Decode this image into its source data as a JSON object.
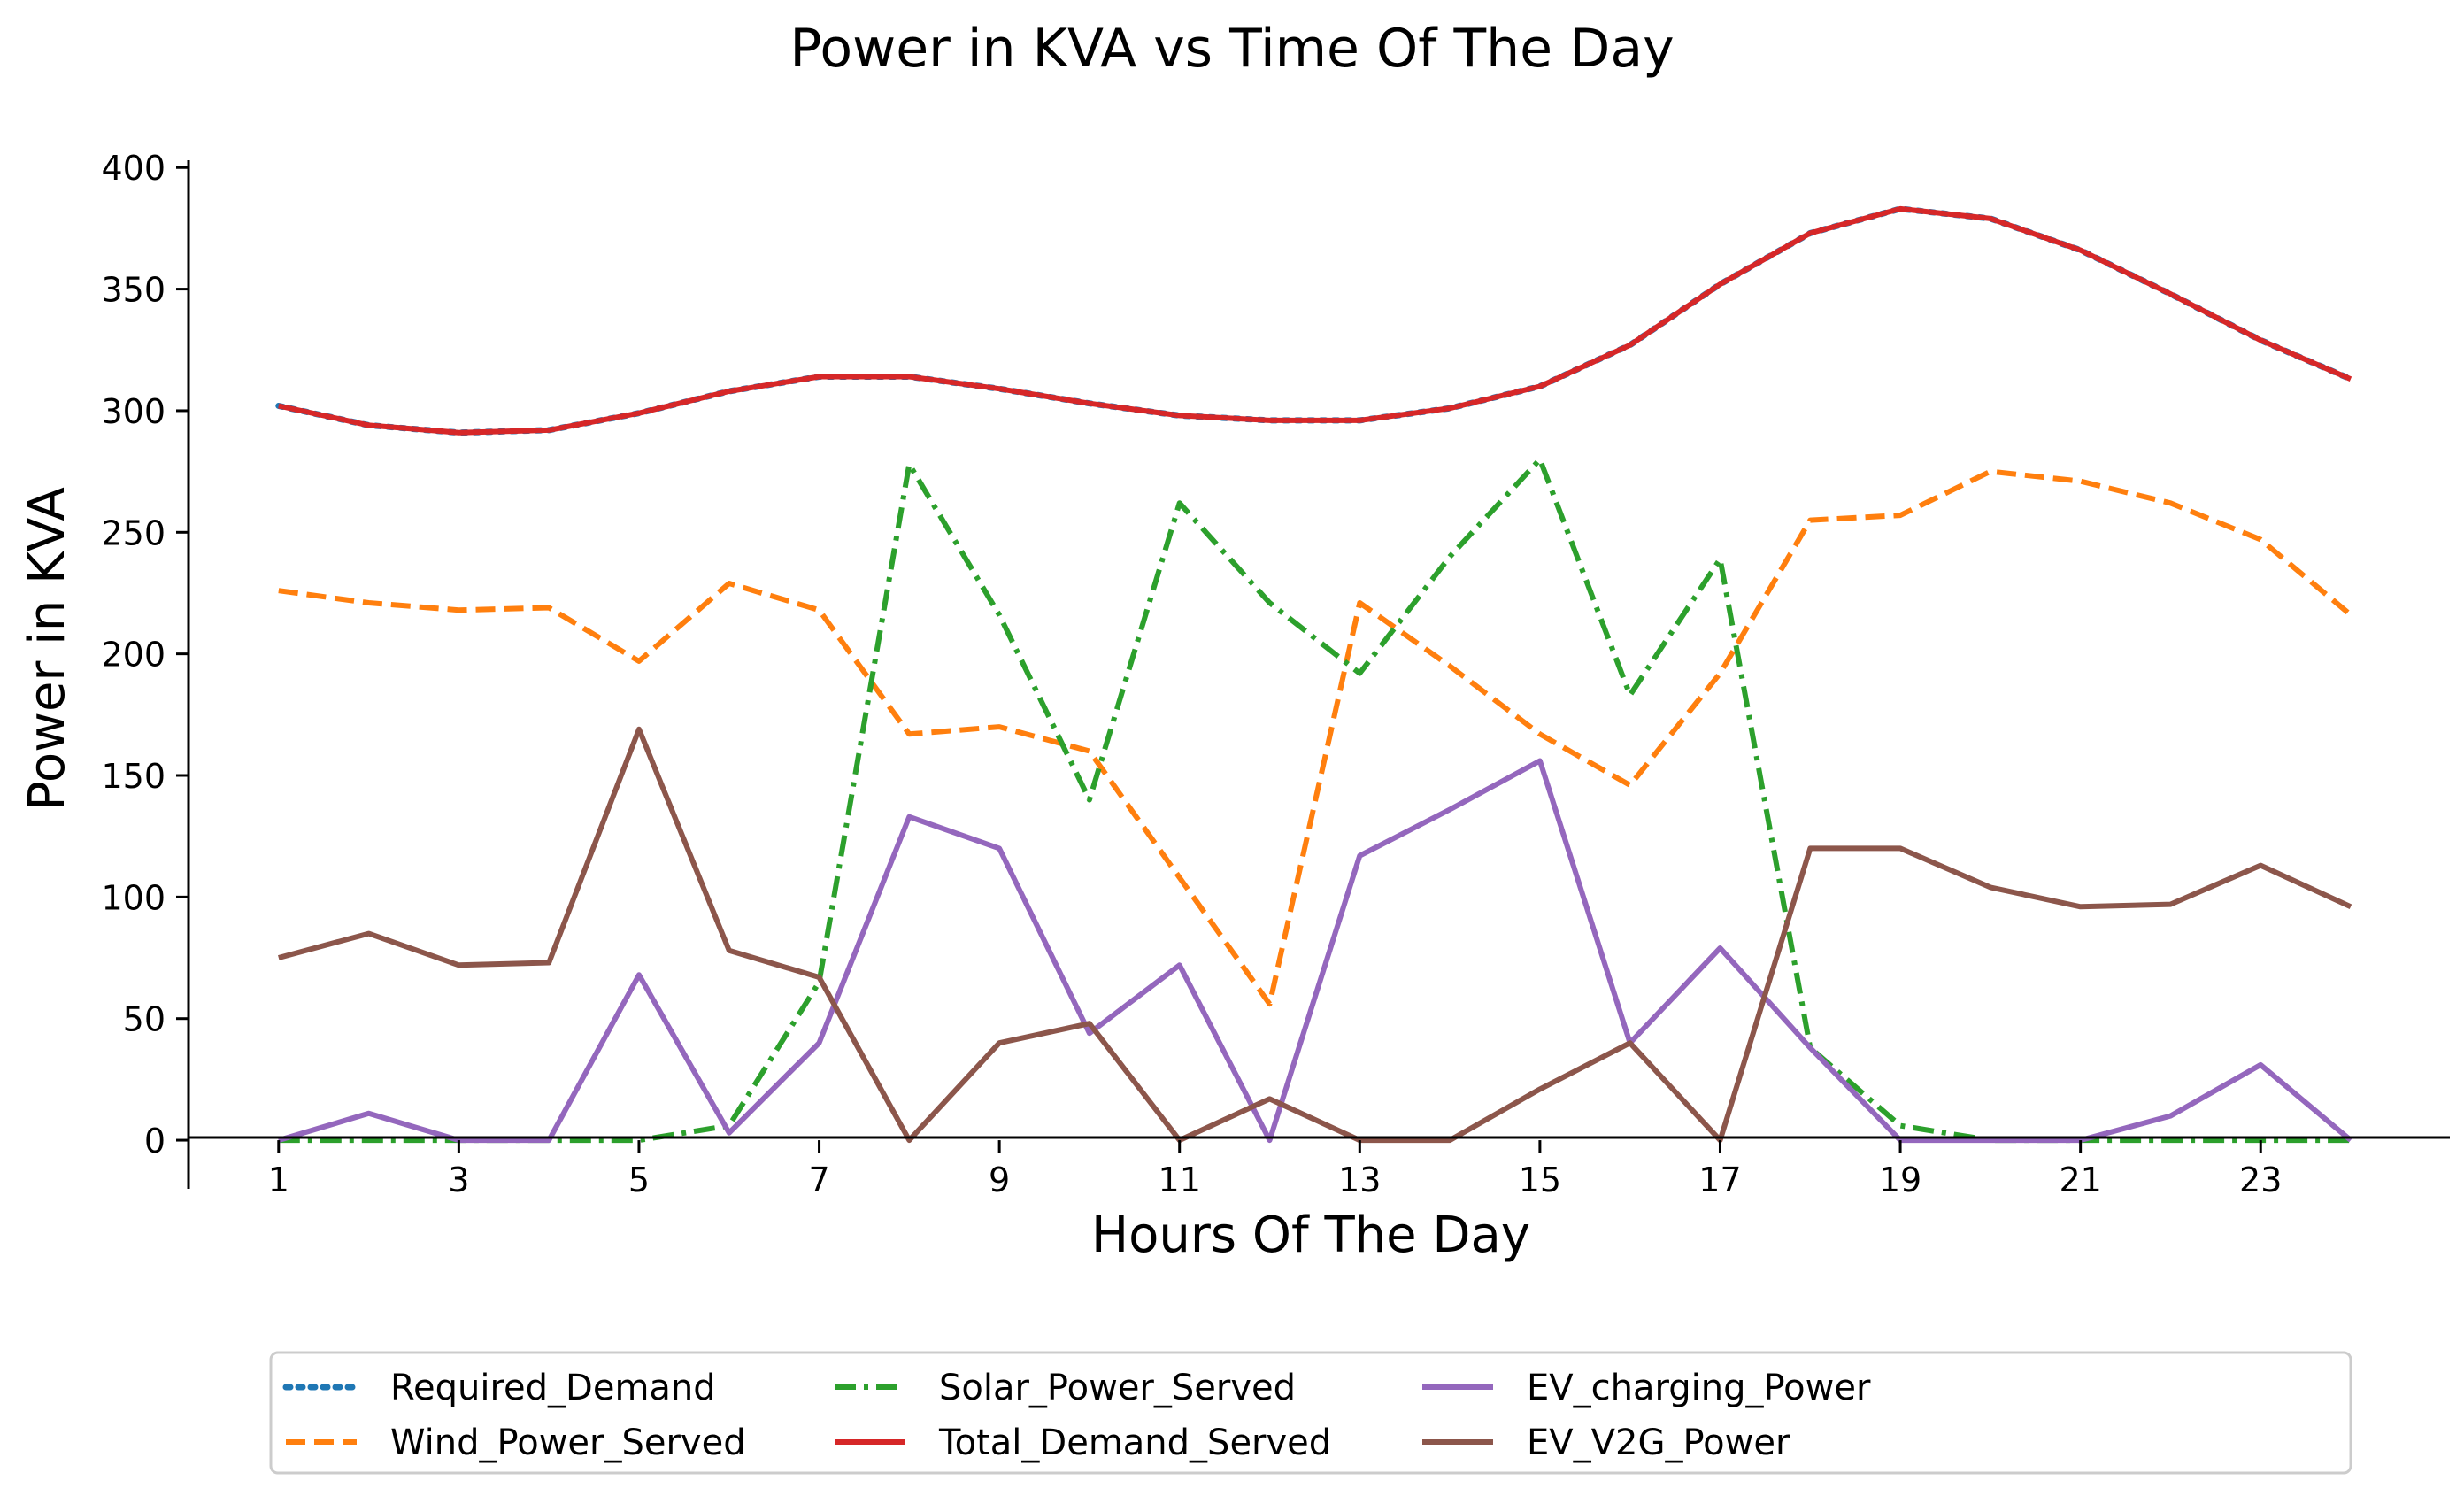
{
  "chart_data": {
    "type": "line",
    "title": "Power in KVA vs Time Of The Day",
    "xlabel": "Hours Of The Day",
    "ylabel": "Power in KVA",
    "x": [
      1,
      2,
      3,
      4,
      5,
      6,
      7,
      8,
      9,
      10,
      11,
      12,
      13,
      14,
      15,
      16,
      17,
      18,
      19,
      20,
      21,
      22,
      23,
      24
    ],
    "xticks": [
      1,
      3,
      5,
      7,
      9,
      11,
      13,
      15,
      17,
      19,
      21,
      23
    ],
    "yticks": [
      0,
      50,
      100,
      150,
      200,
      250,
      300,
      350,
      400
    ],
    "xlim": [
      0,
      25.1
    ],
    "ylim": [
      -20,
      403
    ],
    "grid": false,
    "legend_position": "bottom-center",
    "series": [
      {
        "name": "Required_Demand",
        "color": "#1f77b4",
        "style": "dotted",
        "values": [
          302,
          294,
          291,
          292,
          299,
          308,
          314,
          314,
          309,
          303,
          298,
          296,
          296,
          301,
          310,
          327,
          352,
          373,
          383,
          379,
          366,
          348,
          329,
          313
        ]
      },
      {
        "name": "Wind_Power_Served",
        "color": "#ff7f0e",
        "style": "dashed",
        "values": [
          226,
          221,
          218,
          219,
          197,
          229,
          218,
          167,
          170,
          160,
          108,
          56,
          221,
          195,
          167,
          146,
          192,
          255,
          257,
          275,
          271,
          262,
          247,
          216
        ]
      },
      {
        "name": "Solar_Power_Served",
        "color": "#2ca02c",
        "style": "dashdot",
        "values": [
          0,
          0,
          0,
          0,
          0,
          6,
          65,
          278,
          216,
          140,
          262,
          221,
          192,
          240,
          280,
          183,
          239,
          38,
          6,
          0,
          0,
          0,
          0,
          0
        ]
      },
      {
        "name": "Total_Demand_Served",
        "color": "#d62728",
        "style": "solid",
        "values": [
          302,
          294,
          291,
          292,
          299,
          308,
          314,
          314,
          309,
          303,
          298,
          296,
          296,
          301,
          310,
          327,
          352,
          373,
          383,
          379,
          366,
          348,
          329,
          313
        ]
      },
      {
        "name": "EV_charging_Power",
        "color": "#9467bd",
        "style": "solid",
        "values": [
          0,
          11,
          0,
          0,
          68,
          3,
          40,
          133,
          120,
          44,
          72,
          0,
          117,
          136,
          156,
          40,
          79,
          38,
          0,
          0,
          0,
          10,
          31,
          0
        ]
      },
      {
        "name": "EV_V2G_Power",
        "color": "#8c564b",
        "style": "solid",
        "values": [
          75,
          85,
          72,
          73,
          169,
          78,
          67,
          0,
          40,
          48,
          0,
          17,
          0,
          0,
          21,
          40,
          0,
          120,
          120,
          104,
          96,
          97,
          113,
          96
        ]
      }
    ]
  }
}
